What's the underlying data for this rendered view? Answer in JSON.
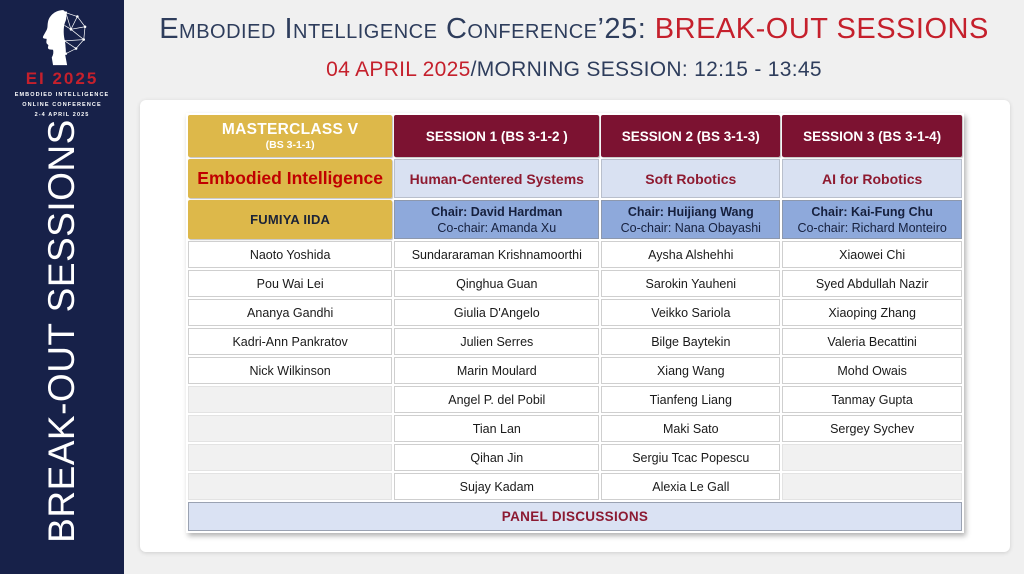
{
  "logo": {
    "title": "EI 2025",
    "subtitle_lines": [
      "EMBODIED INTELLIGENCE",
      "ONLINE CONFERENCE",
      "2-4 APRIL 2025"
    ]
  },
  "sidebar": {
    "vertical_title": "BREAK-OUT SESSIONS"
  },
  "header": {
    "title_main": "Embodied Intelligence Conference’25:",
    "title_accent": " BREAK-OUT SESSIONS",
    "date": "04 APRIL 2025",
    "session_info": "/MORNING SESSION: 12:15 - 13:45"
  },
  "table": {
    "columns": [
      {
        "header": "MASTERCLASS V",
        "room": "(BS 3-1-1)",
        "topic": "Embodied Intelligence",
        "chair": "FUMIYA IIDA",
        "cochair": "",
        "names": [
          "Naoto Yoshida",
          "Pou Wai Lei",
          "Ananya Gandhi",
          "Kadri-Ann Pankratov",
          "Nick Wilkinson",
          "",
          "",
          "",
          ""
        ]
      },
      {
        "header": "SESSION 1 (BS 3-1-2 )",
        "room": "",
        "topic": "Human-Centered Systems",
        "chair": "Chair: David Hardman",
        "cochair": "Co-chair: Amanda Xu",
        "names": [
          "Sundararaman Krishnamoorthi",
          "Qinghua Guan",
          "Giulia D'Angelo",
          "Julien Serres",
          "Marin Moulard",
          "Angel P. del Pobil",
          "Tian Lan",
          "Qihan Jin",
          "Sujay Kadam"
        ]
      },
      {
        "header": "SESSION 2 (BS 3-1-3)",
        "room": "",
        "topic": "Soft Robotics",
        "chair": "Chair: Huijiang Wang",
        "cochair": "Co-chair: Nana Obayashi",
        "names": [
          "Aysha Alshehhi",
          "Sarokin Yauheni",
          "Veikko Sariola",
          "Bilge Baytekin",
          "Xiang Wang",
          "Tianfeng Liang",
          "Maki Sato",
          "Sergiu Tcac Popescu",
          "Alexia Le Gall"
        ]
      },
      {
        "header": "SESSION 3 (BS 3-1-4)",
        "room": "",
        "topic": "AI for Robotics",
        "chair": "Chair: Kai-Fung Chu",
        "cochair": "Co-chair: Richard Monteiro",
        "names": [
          "Xiaowei Chi",
          "Syed Abdullah Nazir",
          "Xiaoping Zhang",
          "Valeria Becattini",
          "Mohd Owais",
          "Tanmay Gupta",
          "Sergey Sychev",
          "",
          ""
        ]
      }
    ],
    "footer": "PANEL DISCUSSIONS"
  },
  "colors": {
    "navy": "#172149",
    "navy_text": "#2e3d5c",
    "red": "#c5202c",
    "maroon": "#7c1231",
    "gold": "#ddb84a",
    "light_blue": "#d9e1f2",
    "medium_blue": "#8ea9db",
    "panel_blue": "#dae2f3"
  }
}
